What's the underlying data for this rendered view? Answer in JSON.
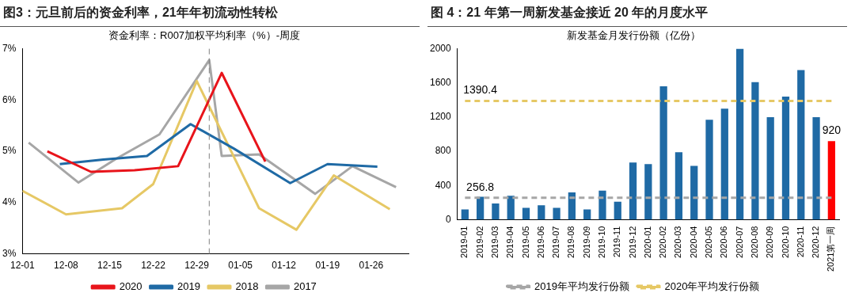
{
  "chart_data": [
    {
      "type": "line",
      "title": "图3：元旦前后的资金利率，21年年初流动性转松",
      "subtitle": "资金利率：R007加权平均利率（%）-周度",
      "xlim": [
        "2020-12-01",
        "2021-02-01"
      ],
      "xticks": [
        {
          "value": "2020-12-01",
          "label": "12-01"
        },
        {
          "value": "2020-12-08",
          "label": "12-08"
        },
        {
          "value": "2020-12-15",
          "label": "12-15"
        },
        {
          "value": "2020-12-22",
          "label": "12-22"
        },
        {
          "value": "2020-12-29",
          "label": "12-29"
        },
        {
          "value": "2021-01-05",
          "label": "01-05"
        },
        {
          "value": "2021-01-12",
          "label": "01-12"
        },
        {
          "value": "2021-01-19",
          "label": "01-19"
        },
        {
          "value": "2021-01-26",
          "label": "01-26"
        }
      ],
      "ylim": [
        3,
        7
      ],
      "yticks": [
        {
          "value": 3,
          "label": "3%"
        },
        {
          "value": 4,
          "label": "4%"
        },
        {
          "value": 5,
          "label": "5%"
        },
        {
          "value": 6,
          "label": "6%"
        },
        {
          "value": 7,
          "label": "7%"
        }
      ],
      "legend": "bottom",
      "marker": "none",
      "ref_lines": [
        {
          "axis": "x",
          "value": "2020-12-31",
          "color": "#808080",
          "line_style": "dashed"
        }
      ],
      "series": [
        {
          "name": "2020",
          "color": "#e8141b",
          "x": [
            "2020-12-05",
            "2020-12-12",
            "2020-12-19",
            "2020-12-26",
            "2021-01-02",
            "2021-01-09"
          ],
          "values": [
            5.0,
            4.6,
            4.63,
            4.71,
            6.53,
            4.8
          ]
        },
        {
          "name": "2019",
          "color": "#1f6aa5",
          "x": [
            "2020-12-07",
            "2020-12-14",
            "2020-12-21",
            "2020-12-28",
            "2021-01-04",
            "2021-01-13",
            "2021-01-19",
            "2021-01-27"
          ],
          "values": [
            4.75,
            4.84,
            4.91,
            5.53,
            5.05,
            4.38,
            4.75,
            4.7
          ]
        },
        {
          "name": "2018",
          "color": "#e6c865",
          "x": [
            "2020-12-01",
            "2020-12-08",
            "2020-12-17",
            "2020-12-22",
            "2020-12-29",
            "2021-01-08",
            "2021-01-14",
            "2021-01-20",
            "2021-01-29"
          ],
          "values": [
            4.23,
            3.77,
            3.89,
            4.36,
            6.37,
            3.89,
            3.47,
            4.53,
            3.87
          ]
        },
        {
          "name": "2017",
          "color": "#a6a6a6",
          "x": [
            "2020-12-02",
            "2020-12-10",
            "2020-12-16",
            "2020-12-23",
            "2020-12-31",
            "2021-01-02",
            "2021-01-08",
            "2021-01-17",
            "2021-01-23",
            "2021-01-30"
          ],
          "values": [
            5.17,
            4.39,
            4.85,
            5.33,
            6.78,
            4.91,
            4.94,
            4.17,
            4.71,
            4.3
          ]
        }
      ]
    },
    {
      "type": "bar",
      "title": "图 4：21 年第一周新发基金接近 20 年的月度水平",
      "subtitle": "新发基金月发行份额（亿份）",
      "categories": [
        "2019-01",
        "2019-02",
        "2019-03",
        "2019-04",
        "2019-05",
        "2019-06",
        "2019-07",
        "2019-08",
        "2019-09",
        "2019-10",
        "2019-11",
        "2019-12",
        "2020-01",
        "2020-02",
        "2020-03",
        "2020-04",
        "2020-05",
        "2020-06",
        "2020-07",
        "2020-08",
        "2020-09",
        "2020-10",
        "2020-11",
        "2020-12",
        "2021第一周"
      ],
      "ylim": [
        0,
        2000
      ],
      "yticks": [
        0,
        400,
        800,
        1200,
        1600,
        2000
      ],
      "legend": "bottom",
      "marker": "none",
      "series": [
        {
          "type": "bar",
          "colors": [
            "#1f6aa5",
            "#1f6aa5",
            "#1f6aa5",
            "#1f6aa5",
            "#1f6aa5",
            "#1f6aa5",
            "#1f6aa5",
            "#1f6aa5",
            "#1f6aa5",
            "#1f6aa5",
            "#1f6aa5",
            "#1f6aa5",
            "#1f6aa5",
            "#1f6aa5",
            "#1f6aa5",
            "#1f6aa5",
            "#1f6aa5",
            "#1f6aa5",
            "#1f6aa5",
            "#1f6aa5",
            "#1f6aa5",
            "#1f6aa5",
            "#1f6aa5",
            "#1f6aa5",
            "#ff0000"
          ],
          "values": [
            120,
            270,
            190,
            280,
            140,
            170,
            140,
            320,
            120,
            340,
            210,
            670,
            650,
            1560,
            790,
            630,
            1170,
            1300,
            2000,
            1610,
            1200,
            1440,
            1750,
            1200,
            920
          ],
          "value_labels": [
            null,
            null,
            null,
            null,
            null,
            null,
            null,
            null,
            null,
            null,
            null,
            null,
            null,
            null,
            null,
            null,
            null,
            null,
            null,
            null,
            null,
            null,
            null,
            null,
            "920"
          ]
        },
        {
          "type": "line",
          "name": "2019年平均发行份额",
          "color": "#a6a6a6",
          "line_style": "dashed",
          "values": [
            256.8,
            256.8,
            256.8,
            256.8,
            256.8,
            256.8,
            256.8,
            256.8,
            256.8,
            256.8,
            256.8,
            256.8,
            256.8,
            256.8,
            256.8,
            256.8,
            256.8,
            256.8,
            256.8,
            256.8,
            256.8,
            256.8,
            256.8,
            256.8,
            256.8
          ]
        },
        {
          "type": "line",
          "name": "2020年平均发行份额",
          "color": "#e6c865",
          "line_style": "dashed",
          "values": [
            1390.4,
            1390.4,
            1390.4,
            1390.4,
            1390.4,
            1390.4,
            1390.4,
            1390.4,
            1390.4,
            1390.4,
            1390.4,
            1390.4,
            1390.4,
            1390.4,
            1390.4,
            1390.4,
            1390.4,
            1390.4,
            1390.4,
            1390.4,
            1390.4,
            1390.4,
            1390.4,
            1390.4,
            1390.4
          ]
        }
      ],
      "annotations": [
        {
          "text": "256.8",
          "x": "2019-02",
          "y": 256.8
        },
        {
          "text": "1390.4",
          "x": "2019-02",
          "y": 1390.4
        }
      ]
    }
  ]
}
